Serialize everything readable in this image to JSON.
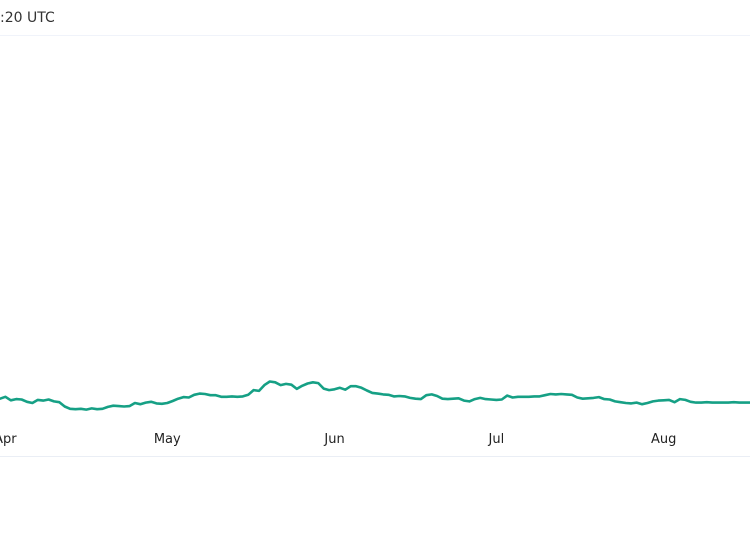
{
  "header": {
    "timestamp": ":20 UTC"
  },
  "colors": {
    "line": "#16a085",
    "axis": "#e9edf3",
    "text": "#222222"
  },
  "chart_data": {
    "type": "line",
    "title": "",
    "xlabel": "",
    "ylabel": "",
    "x_ticks": [
      {
        "label": "Apr",
        "x": 0
      },
      {
        "label": "May",
        "x": 30
      },
      {
        "label": "Jun",
        "x": 61
      },
      {
        "label": "Jul",
        "x": 91
      },
      {
        "label": "Aug",
        "x": 122
      }
    ],
    "xlim": [
      -1,
      138
    ],
    "ylim": [
      0,
      100
    ],
    "series": [
      {
        "values": [
          [
            -1,
            7.0
          ],
          [
            0,
            7.5
          ],
          [
            1,
            6.6
          ],
          [
            2,
            6.9
          ],
          [
            3,
            6.8
          ],
          [
            4,
            6.2
          ],
          [
            5,
            5.9
          ],
          [
            6,
            6.7
          ],
          [
            7,
            6.5
          ],
          [
            8,
            6.8
          ],
          [
            9,
            6.3
          ],
          [
            10,
            6.1
          ],
          [
            11,
            5.0
          ],
          [
            12,
            4.4
          ],
          [
            13,
            4.3
          ],
          [
            14,
            4.4
          ],
          [
            15,
            4.2
          ],
          [
            16,
            4.5
          ],
          [
            17,
            4.3
          ],
          [
            18,
            4.4
          ],
          [
            19,
            4.9
          ],
          [
            20,
            5.2
          ],
          [
            21,
            5.1
          ],
          [
            22,
            5.0
          ],
          [
            23,
            5.1
          ],
          [
            24,
            5.9
          ],
          [
            25,
            5.6
          ],
          [
            26,
            6.0
          ],
          [
            27,
            6.2
          ],
          [
            28,
            5.8
          ],
          [
            29,
            5.7
          ],
          [
            30,
            5.9
          ],
          [
            31,
            6.4
          ],
          [
            32,
            7.0
          ],
          [
            33,
            7.4
          ],
          [
            34,
            7.3
          ],
          [
            35,
            8.0
          ],
          [
            36,
            8.3
          ],
          [
            37,
            8.2
          ],
          [
            38,
            7.9
          ],
          [
            39,
            7.9
          ],
          [
            40,
            7.5
          ],
          [
            41,
            7.5
          ],
          [
            42,
            7.6
          ],
          [
            43,
            7.5
          ],
          [
            44,
            7.6
          ],
          [
            45,
            8.0
          ],
          [
            46,
            9.2
          ],
          [
            47,
            9.0
          ],
          [
            48,
            10.5
          ],
          [
            49,
            11.4
          ],
          [
            50,
            11.2
          ],
          [
            51,
            10.5
          ],
          [
            52,
            10.8
          ],
          [
            53,
            10.6
          ],
          [
            54,
            9.5
          ],
          [
            55,
            10.3
          ],
          [
            56,
            10.9
          ],
          [
            57,
            11.2
          ],
          [
            58,
            11.0
          ],
          [
            59,
            9.6
          ],
          [
            60,
            9.2
          ],
          [
            61,
            9.4
          ],
          [
            62,
            9.8
          ],
          [
            63,
            9.3
          ],
          [
            64,
            10.2
          ],
          [
            65,
            10.2
          ],
          [
            66,
            9.8
          ],
          [
            67,
            9.1
          ],
          [
            68,
            8.5
          ],
          [
            69,
            8.3
          ],
          [
            70,
            8.1
          ],
          [
            71,
            8.0
          ],
          [
            72,
            7.6
          ],
          [
            73,
            7.7
          ],
          [
            74,
            7.6
          ],
          [
            75,
            7.2
          ],
          [
            76,
            7.0
          ],
          [
            77,
            6.9
          ],
          [
            78,
            7.9
          ],
          [
            79,
            8.1
          ],
          [
            80,
            7.7
          ],
          [
            81,
            7.0
          ],
          [
            82,
            6.9
          ],
          [
            83,
            7.0
          ],
          [
            84,
            7.1
          ],
          [
            85,
            6.5
          ],
          [
            86,
            6.3
          ],
          [
            87,
            6.9
          ],
          [
            88,
            7.2
          ],
          [
            89,
            6.9
          ],
          [
            90,
            6.8
          ],
          [
            91,
            6.7
          ],
          [
            92,
            6.8
          ],
          [
            93,
            7.8
          ],
          [
            94,
            7.3
          ],
          [
            95,
            7.5
          ],
          [
            96,
            7.5
          ],
          [
            97,
            7.5
          ],
          [
            98,
            7.6
          ],
          [
            99,
            7.6
          ],
          [
            100,
            7.9
          ],
          [
            101,
            8.2
          ],
          [
            102,
            8.1
          ],
          [
            103,
            8.2
          ],
          [
            104,
            8.1
          ],
          [
            105,
            8.0
          ],
          [
            106,
            7.3
          ],
          [
            107,
            7.0
          ],
          [
            108,
            7.1
          ],
          [
            109,
            7.2
          ],
          [
            110,
            7.4
          ],
          [
            111,
            6.9
          ],
          [
            112,
            6.8
          ],
          [
            113,
            6.3
          ],
          [
            114,
            6.1
          ],
          [
            115,
            5.9
          ],
          [
            116,
            5.8
          ],
          [
            117,
            6.0
          ],
          [
            118,
            5.6
          ],
          [
            119,
            5.9
          ],
          [
            120,
            6.3
          ],
          [
            121,
            6.5
          ],
          [
            122,
            6.6
          ],
          [
            123,
            6.7
          ],
          [
            124,
            6.1
          ],
          [
            125,
            6.9
          ],
          [
            126,
            6.7
          ],
          [
            127,
            6.2
          ],
          [
            128,
            6.0
          ],
          [
            129,
            6.0
          ],
          [
            130,
            6.1
          ],
          [
            131,
            6.0
          ],
          [
            132,
            6.0
          ],
          [
            133,
            6.0
          ],
          [
            134,
            6.0
          ],
          [
            135,
            6.1
          ],
          [
            136,
            6.0
          ],
          [
            137,
            6.0
          ],
          [
            138,
            6.0
          ]
        ]
      }
    ]
  }
}
